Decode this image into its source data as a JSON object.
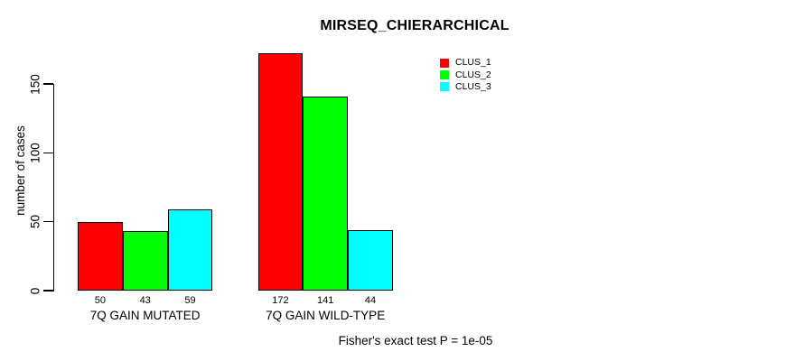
{
  "chart_data": {
    "type": "bar",
    "title": "MIRSEQ_CHIERARCHICAL",
    "ylabel": "number of cases",
    "xlabel": "",
    "categories": [
      "7Q GAIN MUTATED",
      "7Q GAIN WILD-TYPE"
    ],
    "series": [
      {
        "name": "CLUS_1",
        "color": "#ff0000",
        "values": [
          50,
          172
        ]
      },
      {
        "name": "CLUS_2",
        "color": "#00ff00",
        "values": [
          43,
          141
        ]
      },
      {
        "name": "CLUS_3",
        "color": "#00ffff",
        "values": [
          59,
          44
        ]
      }
    ],
    "bar_value_labels": [
      [
        "50",
        "43",
        "59"
      ],
      [
        "172",
        "141",
        "44"
      ]
    ],
    "yticks": [
      0,
      50,
      100,
      150
    ],
    "ylim": [
      0,
      172
    ],
    "grid": false,
    "legend_position": "top-right",
    "legend_entries": [
      "CLUS_1",
      "CLUS_2",
      "CLUS_3"
    ],
    "annotation": "Fisher's exact test P = 1e-05",
    "colors": {
      "axis": "#000000",
      "bar_border": "#000000",
      "text": "#000000",
      "background": "#ffffff"
    }
  }
}
